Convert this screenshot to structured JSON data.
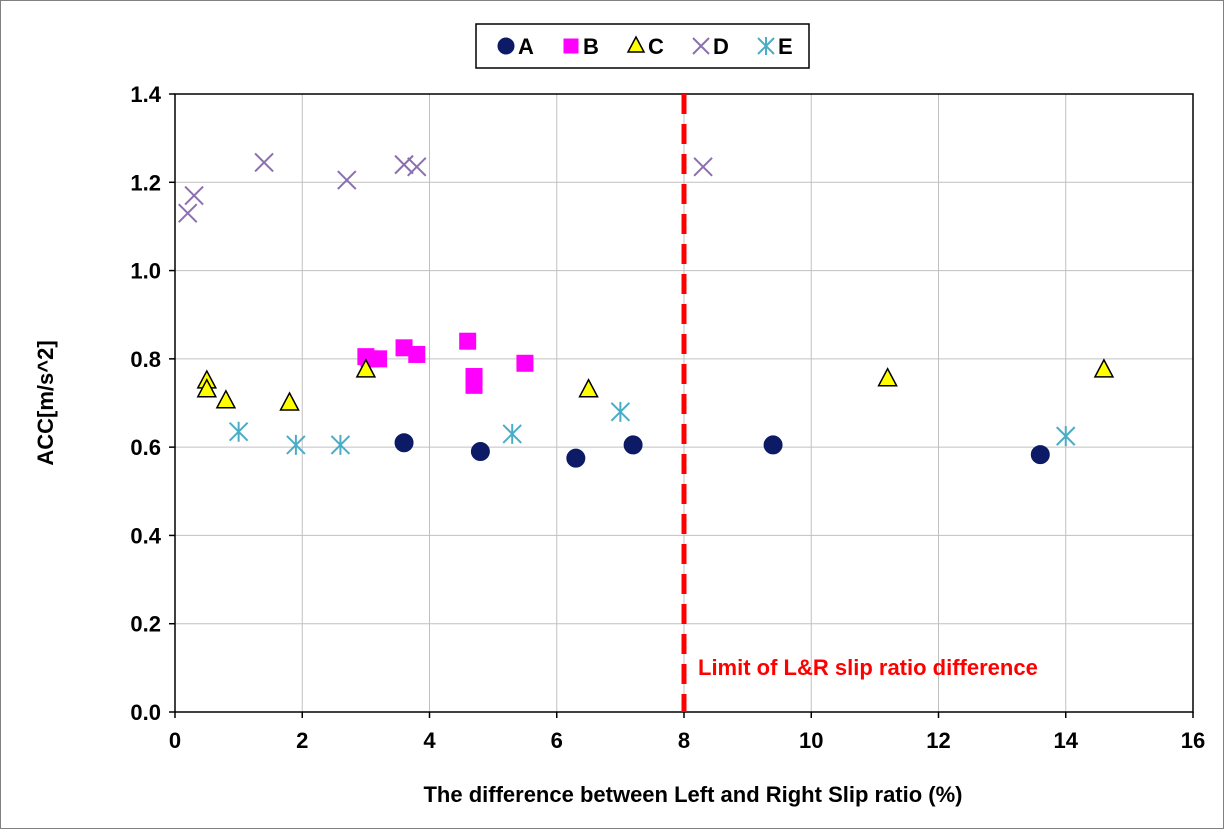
{
  "chart_data": {
    "type": "scatter",
    "xlabel": "The difference between Left and Right Slip ratio (%)",
    "ylabel": "ACC[m/s^2]",
    "xlim": [
      0,
      16
    ],
    "ylim": [
      0,
      1.4
    ],
    "xticks": [
      "0",
      "2",
      "4",
      "6",
      "8",
      "10",
      "12",
      "14",
      "16"
    ],
    "yticks": [
      "0.0",
      "0.2",
      "0.4",
      "0.6",
      "0.8",
      "1.0",
      "1.2",
      "1.4"
    ],
    "grid": true,
    "legend_position": "top-center",
    "series": [
      {
        "name": "A",
        "marker": "circle",
        "color": "#0d1a66",
        "stroke": "#0d1a66",
        "x": [
          3.6,
          4.8,
          6.3,
          7.2,
          9.4,
          13.6
        ],
        "y": [
          0.61,
          0.59,
          0.575,
          0.605,
          0.605,
          0.583
        ]
      },
      {
        "name": "B",
        "marker": "square",
        "color": "#ff00ff",
        "stroke": "#ff00ff",
        "x": [
          3.0,
          3.05,
          3.2,
          3.6,
          3.8,
          4.6,
          4.7,
          4.7,
          5.5
        ],
        "y": [
          0.805,
          0.8,
          0.8,
          0.825,
          0.81,
          0.84,
          0.76,
          0.74,
          0.79
        ]
      },
      {
        "name": "C",
        "marker": "triangle",
        "color": "#ffff00",
        "stroke": "#000000",
        "x": [
          0.5,
          0.5,
          0.8,
          1.8,
          3.0,
          6.5,
          11.2,
          14.6
        ],
        "y": [
          0.75,
          0.73,
          0.705,
          0.7,
          0.775,
          0.73,
          0.755,
          0.775
        ]
      },
      {
        "name": "D",
        "marker": "cross",
        "color": "#8b6fb0",
        "stroke": "#8b6fb0",
        "x": [
          0.2,
          0.3,
          1.4,
          2.7,
          3.6,
          3.8,
          8.3
        ],
        "y": [
          1.13,
          1.17,
          1.245,
          1.205,
          1.24,
          1.235,
          1.235
        ]
      },
      {
        "name": "E",
        "marker": "asterisk",
        "color": "#4bacc6",
        "stroke": "#4bacc6",
        "x": [
          1.0,
          1.9,
          2.6,
          5.3,
          7.0,
          14.0
        ],
        "y": [
          0.635,
          0.605,
          0.605,
          0.63,
          0.68,
          0.625
        ]
      }
    ],
    "reference_line": {
      "x": 8,
      "color": "#ff0000",
      "label": "Limit of L&R slip ratio difference"
    }
  }
}
